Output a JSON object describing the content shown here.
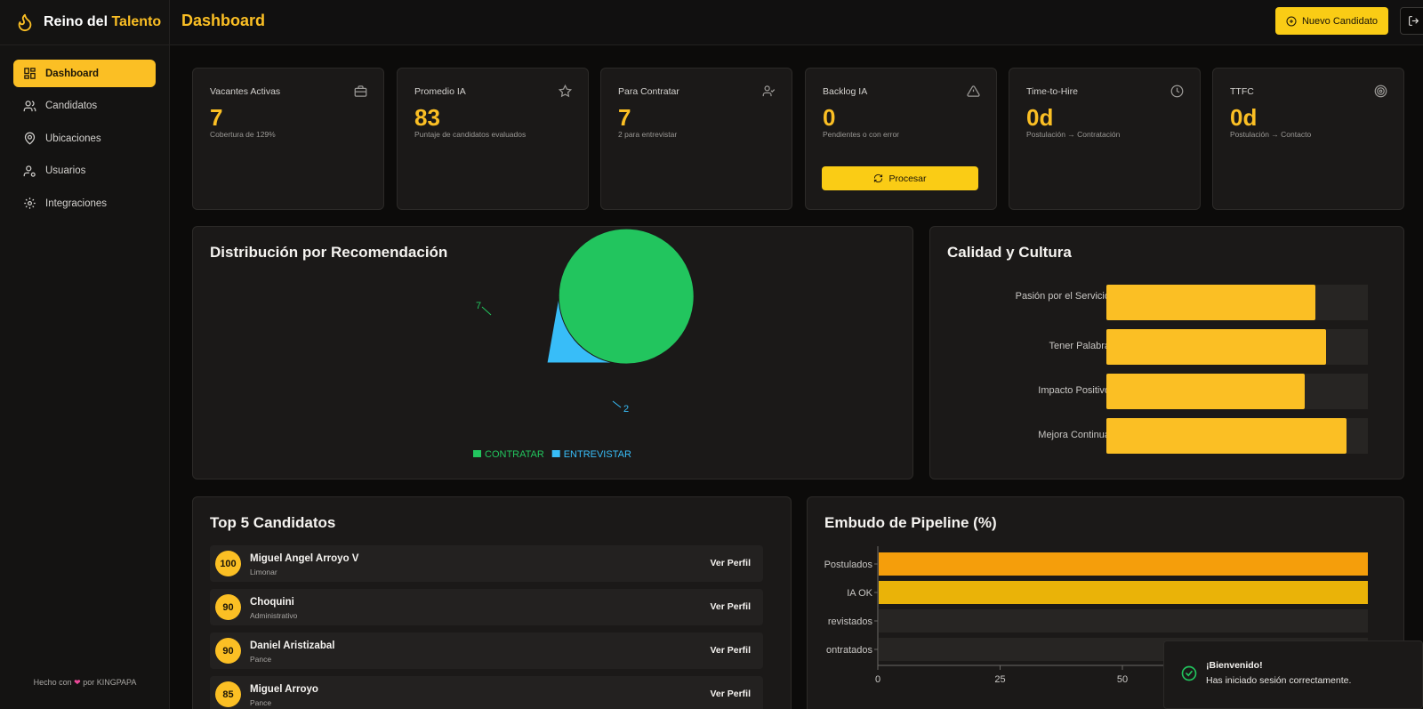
{
  "brand": {
    "name_prefix": "Reino del",
    "name_accent": "Talento"
  },
  "sidebar": {
    "items": [
      {
        "label": "Dashboard",
        "icon": "dashboard-icon",
        "active": true
      },
      {
        "label": "Candidatos",
        "icon": "users-icon"
      },
      {
        "label": "Ubicaciones",
        "icon": "map-pin-icon"
      },
      {
        "label": "Usuarios",
        "icon": "user-cog-icon"
      },
      {
        "label": "Integraciones",
        "icon": "gear-icon"
      }
    ],
    "footer": {
      "prefix": "Hecho con",
      "heart": "❤",
      "suffix": "por KINGPAPA"
    }
  },
  "header": {
    "title": "Dashboard",
    "new_button": "Nuevo Candidato"
  },
  "stats": [
    {
      "title": "Vacantes Activas",
      "value": "7",
      "sub": "Cobertura de 129%",
      "icon": "briefcase-icon"
    },
    {
      "title": "Promedio IA",
      "value": "83",
      "sub": "Puntaje de candidatos evaluados",
      "icon": "star-icon"
    },
    {
      "title": "Para Contratar",
      "value": "7",
      "sub": "2 para entrevistar",
      "icon": "user-check-icon"
    },
    {
      "title": "Backlog IA",
      "value": "0",
      "sub": "Pendientes o con error",
      "icon": "alert-triangle-icon",
      "button": "Procesar"
    },
    {
      "title": "Time-to-Hire",
      "value": "0d",
      "sub": "Postulación → Contratación",
      "icon": "clock-icon"
    },
    {
      "title": "TTFC",
      "value": "0d",
      "sub": "Postulación → Contacto",
      "icon": "target-icon"
    }
  ],
  "distribution": {
    "title": "Distribución por Recomendación"
  },
  "quality": {
    "title": "Calidad y Cultura"
  },
  "top5": {
    "title": "Top 5 Candidatos",
    "link_label": "Ver Perfil",
    "rows": [
      {
        "score": "100",
        "name": "Miguel Angel Arroyo V",
        "location": "Limonar"
      },
      {
        "score": "90",
        "name": "Choquini",
        "location": "Administrativo"
      },
      {
        "score": "90",
        "name": "Daniel Aristizabal",
        "location": "Pance"
      },
      {
        "score": "85",
        "name": "Miguel Arroyo",
        "location": "Pance"
      }
    ]
  },
  "pipeline": {
    "title": "Embudo de Pipeline (%)"
  },
  "toast": {
    "title": "¡Bienvenido!",
    "message": "Has iniciado sesión correctamente."
  },
  "colors": {
    "accent": "#fbbf24",
    "contratar": "#22c55e",
    "entrevistar": "#38bdf8",
    "pipeline_bar": "#f59e0b"
  },
  "chart_data": [
    {
      "type": "pie",
      "categories": [
        "CONTRATAR",
        "ENTREVISTAR"
      ],
      "values": [
        7,
        2
      ],
      "colors": [
        "#22c55e",
        "#38bdf8"
      ],
      "legend": "bottom"
    },
    {
      "type": "bar",
      "orientation": "horizontal",
      "categories": [
        "Pasión por el Servicio",
        "Tener Palabra",
        "Impacto Positivo",
        "Mejora Continua"
      ],
      "values": [
        80,
        84,
        76,
        92
      ],
      "xlim": [
        0,
        100
      ]
    },
    {
      "type": "bar",
      "orientation": "horizontal",
      "categories": [
        "Postulados",
        "IA OK",
        "Entrevistados",
        "Contratados"
      ],
      "visible_category_labels": [
        "Postulados",
        "IA OK",
        "revistados",
        "ontratados"
      ],
      "values": [
        100,
        100,
        0,
        0
      ],
      "xticks": [
        "0",
        "25",
        "50"
      ],
      "xlim": [
        0,
        100
      ]
    }
  ]
}
